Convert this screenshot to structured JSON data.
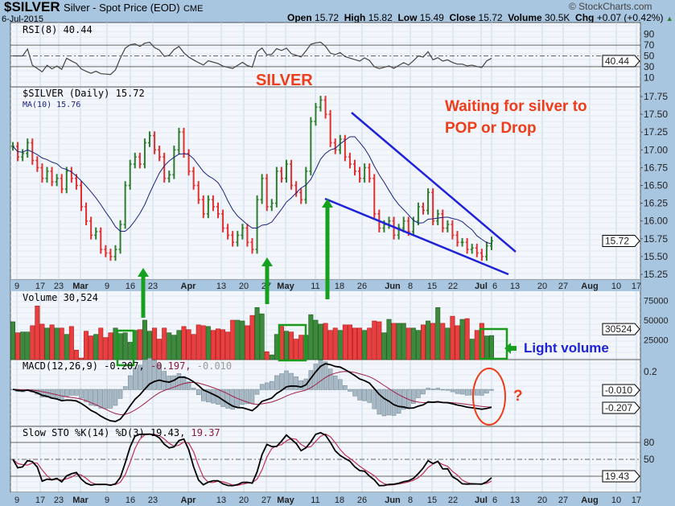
{
  "header": {
    "symbol": "$SILVER",
    "name": "Silver - Spot Price (EOD)",
    "exchange": "CME",
    "date": "6-Jul-2015",
    "copyright": "© StockCharts.com",
    "open_label": "Open",
    "open": "15.72",
    "high_label": "High",
    "high": "15.82",
    "low_label": "Low",
    "low": "15.49",
    "close_label": "Close",
    "close": "15.72",
    "volume_label": "Volume",
    "volume": "30.5K",
    "chg_label": "Chg",
    "chg": "+0.07 (+0.42%)"
  },
  "annotations": {
    "title": "SILVER",
    "note_line1": "Waiting for silver to",
    "note_line2": "POP or Drop",
    "light_volume": "Light volume",
    "question": "?"
  },
  "colors": {
    "up": "#2e7d2e",
    "down": "#e03030",
    "ma": "#1a237e",
    "trendline": "#1f22d8",
    "annotation": "#ee3d1a",
    "arrow": "#15a11d"
  },
  "chart_data": [
    {
      "type": "line",
      "panel": "RSI",
      "legend": "RSI(8) 40.44",
      "yticks": [
        90,
        70,
        50,
        30,
        10
      ],
      "ylim": [
        0,
        100
      ],
      "last_value": "40.44"
    },
    {
      "type": "ohlc",
      "panel": "price",
      "legend": "$SILVER (Daily) 15.72",
      "ma_legend": "MA(10) 15.76",
      "yticks": [
        "17.75",
        "17.50",
        "17.25",
        "17.00",
        "16.75",
        "16.50",
        "16.25",
        "16.00",
        "15.75",
        "15.50",
        "15.25"
      ],
      "ylim": [
        15.15,
        17.85
      ],
      "last_value": "15.72",
      "xticks": [
        "9",
        "17",
        "23",
        "Mar",
        "9",
        "16",
        "23",
        "Apr",
        "13",
        "20",
        "27",
        "May",
        "11",
        "18",
        "26",
        "Jun",
        "8",
        "15",
        "22",
        "Jul",
        "6",
        "13",
        "20",
        "27",
        "Aug",
        "10",
        "17"
      ],
      "closes": [
        17.05,
        16.9,
        16.95,
        17.1,
        16.85,
        16.75,
        16.6,
        16.7,
        16.55,
        16.6,
        16.45,
        16.7,
        16.6,
        16.5,
        16.2,
        16.0,
        15.8,
        15.85,
        15.6,
        15.55,
        15.5,
        15.6,
        15.95,
        16.5,
        16.8,
        16.9,
        16.8,
        17.1,
        17.2,
        17.0,
        16.9,
        16.6,
        16.65,
        17.0,
        17.25,
        16.95,
        16.7,
        16.5,
        16.3,
        16.1,
        16.3,
        16.2,
        16.1,
        15.9,
        15.8,
        15.7,
        15.8,
        15.9,
        15.7,
        15.6,
        16.3,
        16.6,
        16.2,
        16.25,
        16.7,
        16.6,
        16.8,
        16.5,
        16.4,
        16.3,
        16.7,
        17.4,
        17.6,
        17.7,
        17.5,
        17.1,
        17.0,
        17.15,
        16.9,
        16.8,
        16.7,
        16.6,
        16.75,
        16.6,
        16.1,
        15.9,
        15.95,
        16.0,
        15.8,
        15.9,
        16.0,
        15.85,
        16.0,
        16.2,
        16.15,
        16.4,
        16.0,
        16.1,
        15.9,
        15.95,
        15.8,
        15.7,
        15.7,
        15.6,
        15.62,
        15.55,
        15.5,
        15.65,
        15.72
      ],
      "volumes": [
        48,
        34,
        35,
        35,
        43,
        68,
        45,
        40,
        44,
        40,
        40,
        32,
        42,
        12,
        2,
        36,
        30,
        32,
        40,
        28,
        34,
        40,
        33,
        34,
        22,
        37,
        38,
        50,
        36,
        40,
        26,
        40,
        34,
        31,
        37,
        42,
        38,
        32,
        44,
        43,
        42,
        37,
        39,
        38,
        35,
        50,
        50,
        49,
        43,
        56,
        66,
        58,
        10,
        6,
        32,
        42,
        36,
        35,
        26,
        31,
        31,
        57,
        50,
        45,
        46,
        37,
        40,
        37,
        44,
        44,
        40,
        40,
        37,
        40,
        49,
        48,
        34,
        51,
        46,
        46,
        46,
        40,
        40,
        37,
        44,
        49,
        46,
        66,
        46,
        40,
        55,
        43,
        51,
        52,
        26,
        37,
        46,
        30,
        30.5
      ],
      "annotations": [
        "SILVER",
        "Waiting for silver to POP or Drop",
        "Light volume",
        "?"
      ]
    },
    {
      "type": "bar",
      "panel": "volume",
      "legend": "Volume 30,524",
      "yticks": [
        "75000",
        "50000",
        "25000"
      ],
      "last_value": "30524"
    },
    {
      "type": "line",
      "panel": "MACD",
      "legend_prefix": "MACD(12,26,9) -0.207,",
      "legend_signal": "-0.197,",
      "legend_hist": "-0.010",
      "yticks": [
        "0.2"
      ],
      "last_hist": "-0.010",
      "last_macd": "-0.207"
    },
    {
      "type": "line",
      "panel": "STO",
      "legend_prefix": "Slow STO %K(14) %D(3) 19.43,",
      "legend_d": "19.37",
      "yticks": [
        "80",
        "50"
      ],
      "last_value": "19.43"
    }
  ]
}
